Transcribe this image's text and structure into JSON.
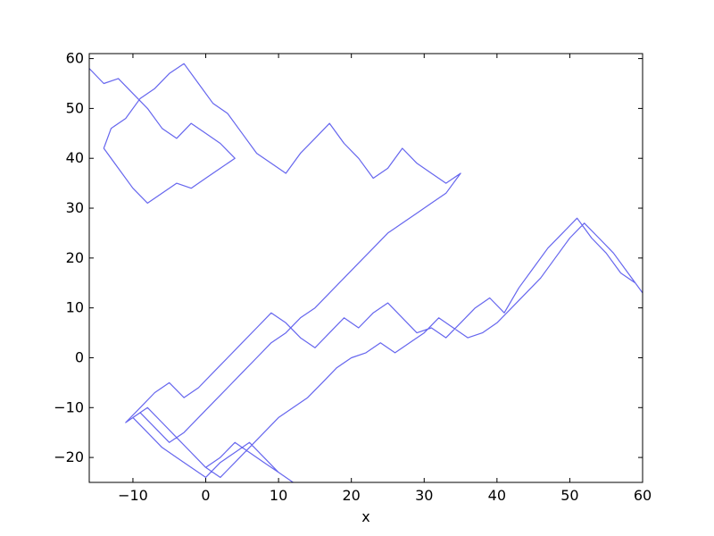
{
  "chart_data": {
    "type": "line",
    "title": "",
    "xlabel": "x",
    "ylabel": "",
    "xlim": [
      -16,
      60
    ],
    "ylim": [
      -25,
      61
    ],
    "xticks": [
      -10,
      0,
      10,
      20,
      30,
      40,
      50,
      60
    ],
    "yticks": [
      -20,
      -10,
      0,
      10,
      20,
      30,
      40,
      50,
      60
    ],
    "grid": false,
    "legend": "none",
    "series": [
      {
        "color": "#6666ee",
        "x": [
          -16,
          -14,
          -12,
          -10,
          -8,
          -6,
          -4,
          -2,
          0,
          2,
          4,
          2,
          0,
          -2,
          -4,
          -6,
          -8,
          -10,
          -12,
          -14,
          -13,
          -11,
          -9,
          -7,
          -5,
          -3,
          -1,
          1,
          3,
          5,
          7,
          9,
          11,
          13,
          15,
          17,
          19,
          21,
          23,
          25,
          27,
          29,
          31,
          33,
          35,
          33,
          31,
          29,
          27,
          25,
          23,
          21,
          19,
          17,
          15,
          13,
          11,
          9,
          7,
          5,
          3,
          1,
          -1,
          -3,
          -5,
          -7,
          -9,
          -11,
          -9,
          -7,
          -5,
          -3,
          -1,
          1,
          3,
          5,
          7,
          9,
          11,
          13,
          15,
          17,
          19,
          21,
          23,
          25,
          27,
          29,
          31,
          33,
          35,
          37,
          39,
          41,
          43,
          45,
          47,
          49,
          51,
          53,
          55,
          57,
          59,
          60,
          58,
          56,
          54,
          52,
          50,
          48,
          46,
          44,
          42,
          40,
          38,
          36,
          34,
          32,
          30,
          28,
          26,
          24,
          22,
          20,
          18,
          16,
          14,
          12,
          10,
          8,
          6,
          4,
          2,
          0,
          -2,
          -4,
          -6,
          -8,
          -10,
          -8,
          -6,
          -4,
          -2,
          0,
          2,
          4,
          6,
          8,
          10,
          12,
          10,
          8,
          6,
          4,
          2,
          0
        ],
        "y": [
          58,
          55,
          56,
          53,
          50,
          46,
          44,
          47,
          45,
          43,
          40,
          38,
          36,
          34,
          35,
          33,
          31,
          34,
          38,
          42,
          46,
          48,
          52,
          54,
          57,
          59,
          55,
          51,
          49,
          45,
          41,
          39,
          37,
          41,
          44,
          47,
          43,
          40,
          36,
          38,
          42,
          39,
          37,
          35,
          37,
          33,
          31,
          29,
          27,
          25,
          22,
          19,
          16,
          13,
          10,
          8,
          5,
          3,
          0,
          -3,
          -6,
          -9,
          -12,
          -15,
          -17,
          -14,
          -11,
          -13,
          -10,
          -7,
          -5,
          -8,
          -6,
          -3,
          0,
          3,
          6,
          9,
          7,
          4,
          2,
          5,
          8,
          6,
          9,
          11,
          8,
          5,
          6,
          4,
          7,
          10,
          12,
          9,
          14,
          18,
          22,
          25,
          28,
          24,
          21,
          17,
          15,
          13,
          17,
          21,
          24,
          27,
          24,
          20,
          16,
          13,
          10,
          7,
          5,
          4,
          6,
          8,
          5,
          3,
          1,
          3,
          1,
          0,
          -2,
          -5,
          -8,
          -10,
          -12,
          -15,
          -18,
          -21,
          -24,
          -22,
          -19,
          -16,
          -13,
          -10,
          -12,
          -15,
          -18,
          -20,
          -22,
          -24,
          -21,
          -19,
          -17,
          -20,
          -23,
          -25,
          -23,
          -21,
          -19,
          -17,
          -20,
          -22
        ]
      }
    ]
  }
}
